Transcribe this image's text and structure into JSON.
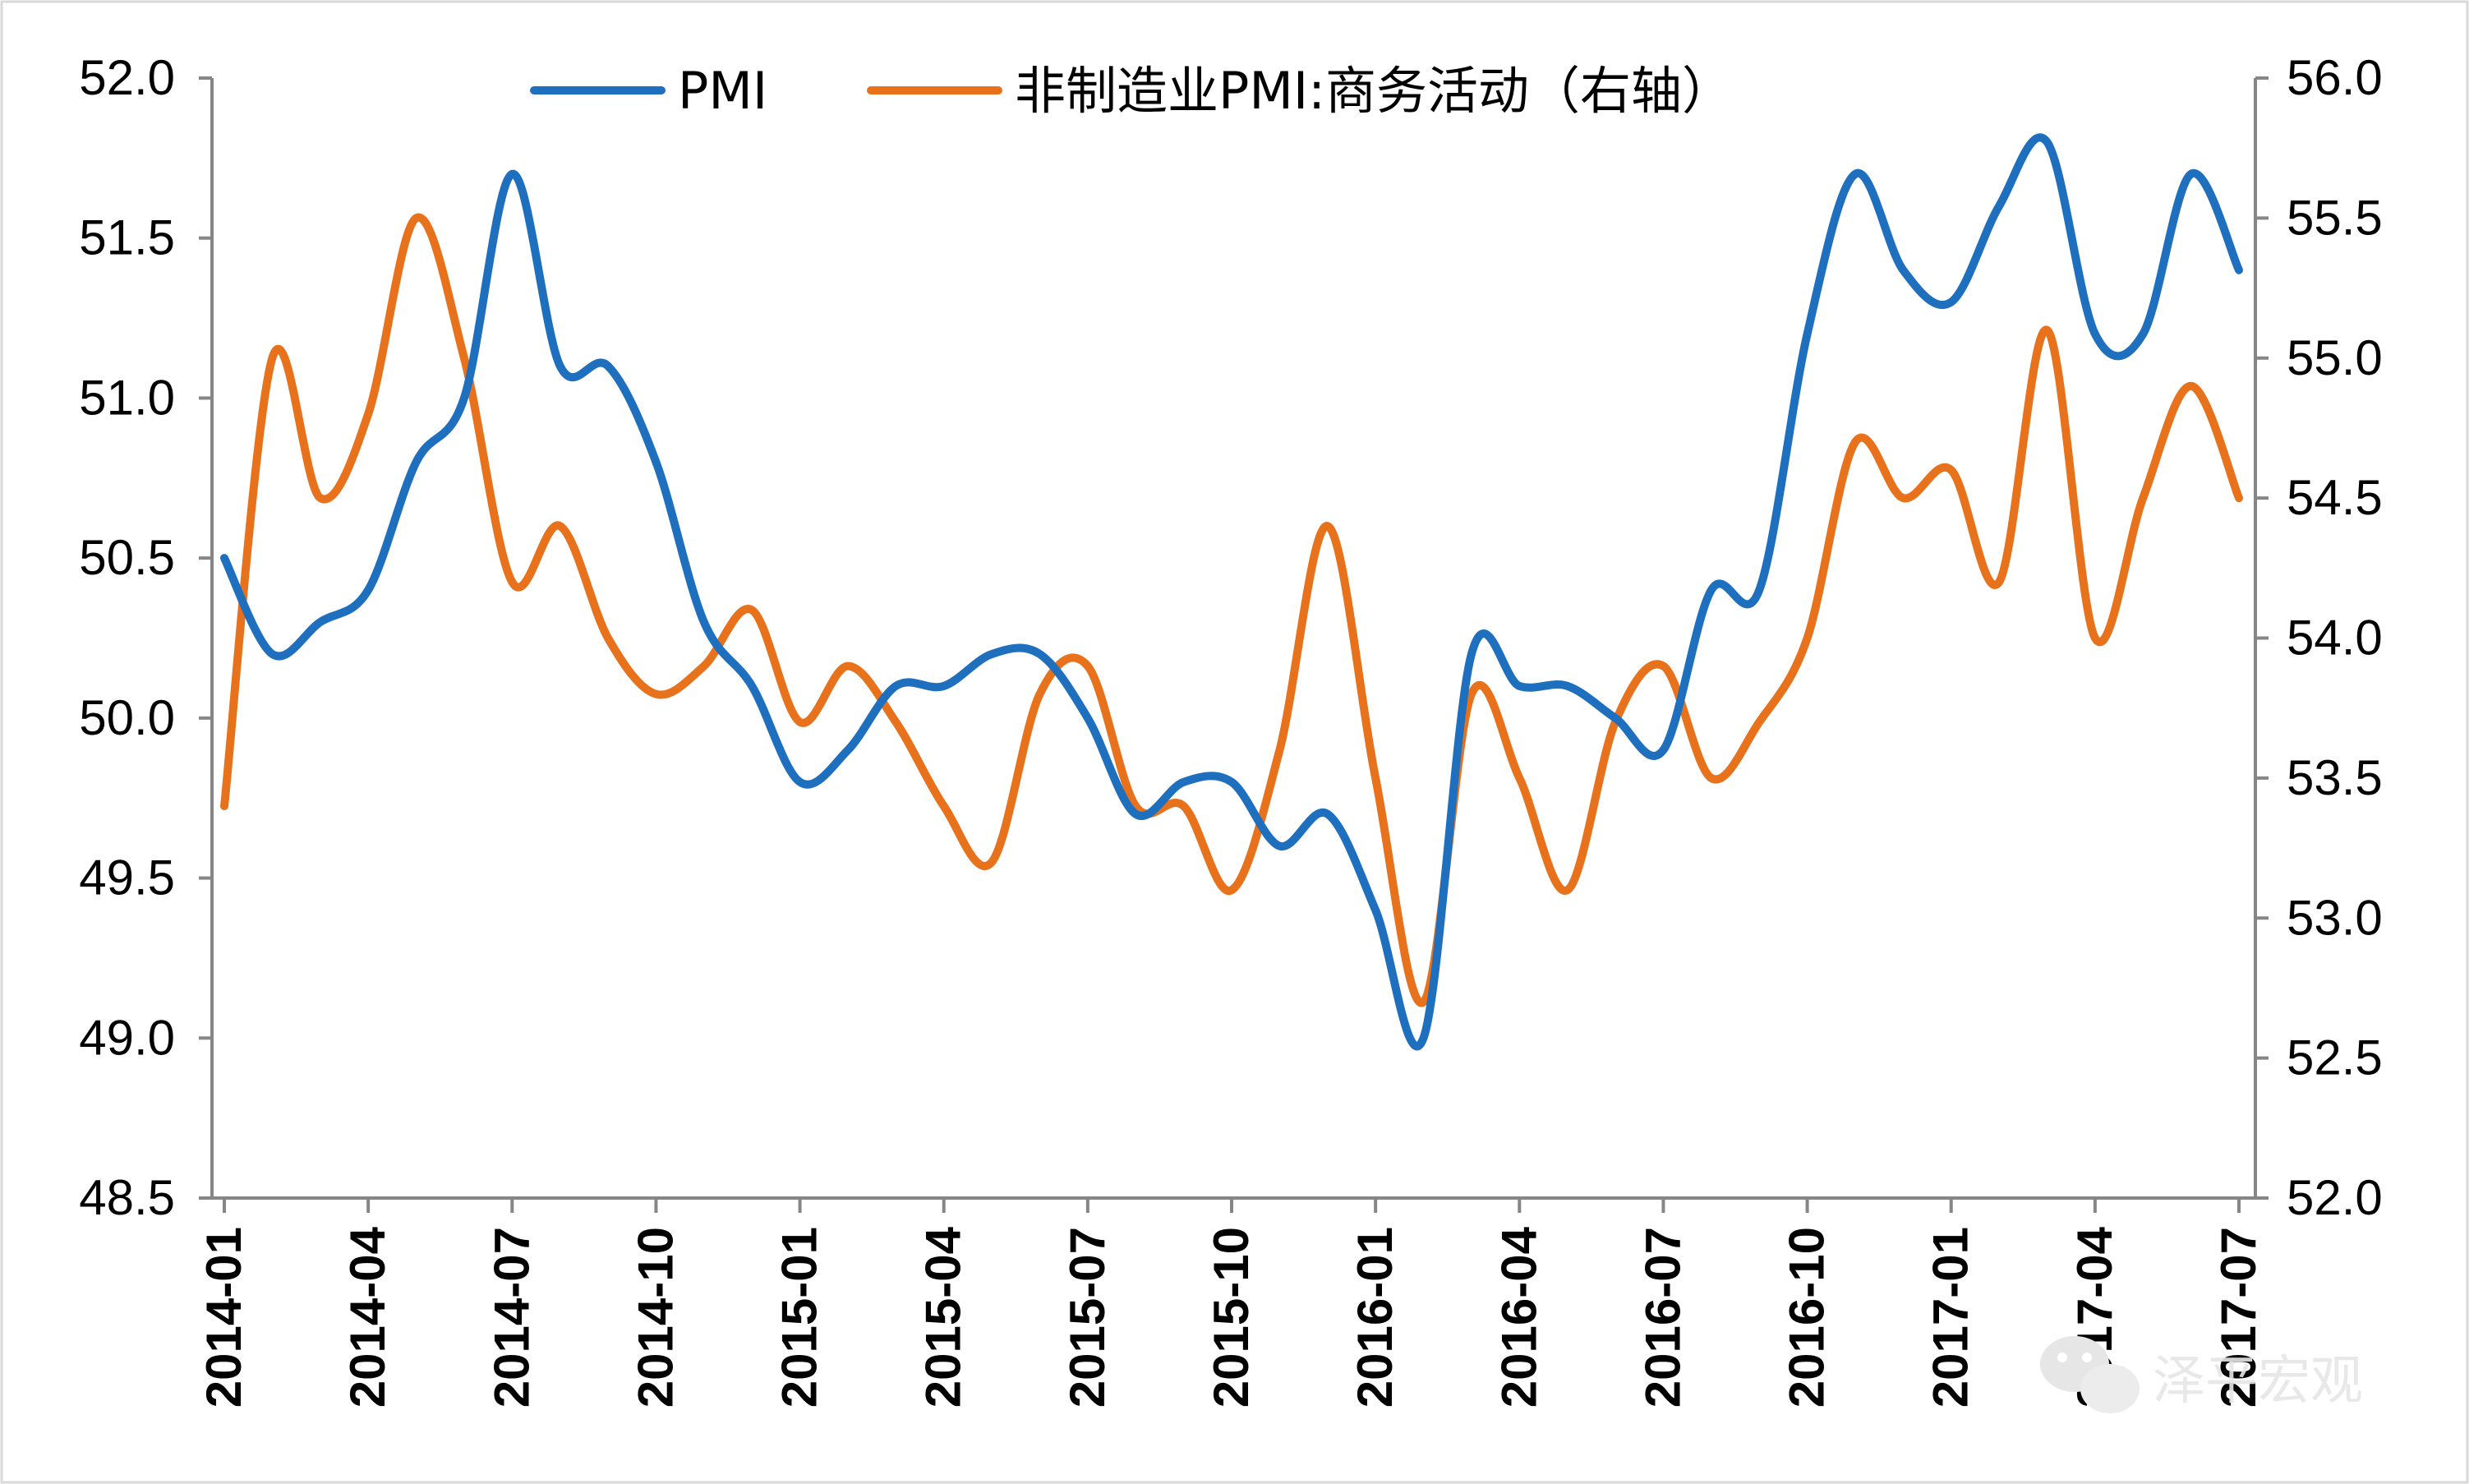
{
  "chart_data": {
    "type": "line",
    "x": [
      "2014-01",
      "2014-02",
      "2014-03",
      "2014-04",
      "2014-05",
      "2014-06",
      "2014-07",
      "2014-08",
      "2014-09",
      "2014-10",
      "2014-11",
      "2014-12",
      "2015-01",
      "2015-02",
      "2015-03",
      "2015-04",
      "2015-05",
      "2015-06",
      "2015-07",
      "2015-08",
      "2015-09",
      "2015-10",
      "2015-11",
      "2015-12",
      "2016-01",
      "2016-02",
      "2016-03",
      "2016-04",
      "2016-05",
      "2016-06",
      "2016-07",
      "2016-08",
      "2016-09",
      "2016-10",
      "2016-11",
      "2016-12",
      "2017-01",
      "2017-02",
      "2017-03",
      "2017-04",
      "2017-05",
      "2017-06",
      "2017-07"
    ],
    "x_tick_labels": [
      "2014-01",
      "2014-04",
      "2014-07",
      "2014-10",
      "2015-01",
      "2015-04",
      "2015-07",
      "2015-10",
      "2016-01",
      "2016-04",
      "2016-07",
      "2016-10",
      "2017-01",
      "2017-04",
      "2017-07"
    ],
    "series": [
      {
        "name": "PMI",
        "axis": "left",
        "color": "#1f6fbf",
        "values": [
          50.5,
          50.2,
          50.3,
          50.4,
          50.8,
          51.0,
          51.7,
          51.1,
          51.1,
          50.8,
          50.3,
          50.1,
          49.8,
          49.9,
          50.1,
          50.1,
          50.2,
          50.2,
          50.0,
          49.7,
          49.8,
          49.8,
          49.6,
          49.7,
          49.4,
          49.0,
          50.2,
          50.1,
          50.1,
          50.0,
          49.9,
          50.4,
          50.4,
          51.2,
          51.7,
          51.4,
          51.3,
          51.6,
          51.8,
          51.2,
          51.2,
          51.7,
          51.4
        ]
      },
      {
        "name": "非制造业PMI:商务活动（右轴）",
        "axis": "right",
        "color": "#e8711c",
        "values": [
          53.4,
          55.0,
          54.5,
          54.8,
          55.5,
          55.0,
          54.2,
          54.4,
          54.0,
          53.8,
          53.9,
          54.1,
          53.7,
          53.9,
          53.7,
          53.4,
          53.2,
          53.8,
          53.9,
          53.4,
          53.4,
          53.1,
          53.6,
          54.4,
          53.5,
          52.7,
          53.8,
          53.5,
          53.1,
          53.7,
          53.9,
          53.5,
          53.7,
          54.0,
          54.7,
          54.5,
          54.6,
          54.2,
          55.1,
          54.0,
          54.5,
          54.9,
          54.5
        ]
      }
    ],
    "y_left": {
      "ylim": [
        48.5,
        52.0
      ],
      "ticks": [
        "48.5",
        "49.0",
        "49.5",
        "50.0",
        "50.5",
        "51.0",
        "51.5",
        "52.0"
      ]
    },
    "y_right": {
      "ylim": [
        52.0,
        56.0
      ],
      "ticks": [
        "52.0",
        "52.5",
        "53.0",
        "53.5",
        "54.0",
        "54.5",
        "55.0",
        "55.5",
        "56.0"
      ]
    },
    "legend": {
      "placement": "top-center"
    },
    "grid": false
  },
  "watermark": {
    "text": "泽平宏观",
    "icon": "wechat-icon"
  }
}
